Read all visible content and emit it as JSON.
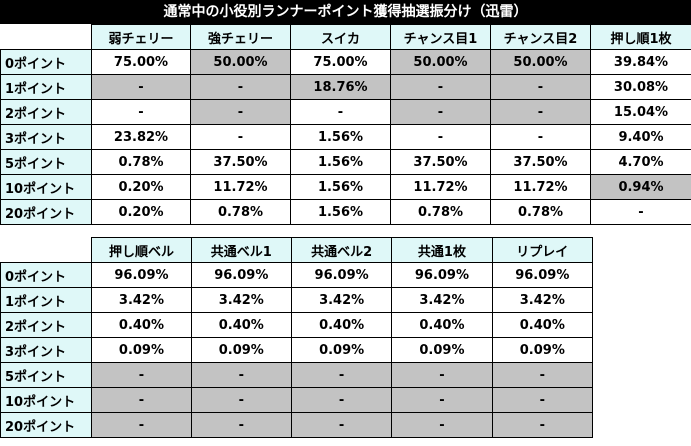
{
  "title": "通常中の小役別ランナーポイント獲得抽選振分け（迅雷）",
  "table1": {
    "headers": [
      "弱チェリー",
      "強チェリー",
      "スイカ",
      "チャンス目1",
      "チャンス目2",
      "押し順1枚"
    ],
    "rows": [
      {
        "label": "0ポイント",
        "cells": [
          "75.00%",
          "50.00%",
          "75.00%",
          "50.00%",
          "50.00%",
          "39.84%"
        ]
      },
      {
        "label": "1ポイント",
        "cells": [
          "-",
          "-",
          "18.76%",
          "-",
          "-",
          "30.08%"
        ]
      },
      {
        "label": "2ポイント",
        "cells": [
          "-",
          "-",
          "-",
          "-",
          "-",
          "15.04%"
        ]
      },
      {
        "label": "3ポイント",
        "cells": [
          "23.82%",
          "-",
          "1.56%",
          "-",
          "-",
          "9.40%"
        ]
      },
      {
        "label": "5ポイント",
        "cells": [
          "0.78%",
          "37.50%",
          "1.56%",
          "37.50%",
          "37.50%",
          "4.70%"
        ]
      },
      {
        "label": "10ポイント",
        "cells": [
          "0.20%",
          "11.72%",
          "1.56%",
          "11.72%",
          "11.72%",
          "0.94%"
        ]
      },
      {
        "label": "20ポイント",
        "cells": [
          "0.20%",
          "0.78%",
          "1.56%",
          "0.78%",
          "0.78%",
          "-"
        ]
      }
    ],
    "gray": [
      [
        0,
        1,
        0,
        1,
        1,
        0
      ],
      [
        1,
        1,
        1,
        1,
        1,
        0
      ],
      [
        0,
        1,
        0,
        1,
        1,
        0
      ],
      [
        0,
        0,
        0,
        0,
        0,
        0
      ],
      [
        0,
        0,
        0,
        0,
        0,
        0
      ],
      [
        0,
        0,
        0,
        0,
        0,
        1
      ],
      [
        0,
        0,
        0,
        0,
        0,
        0
      ]
    ]
  },
  "table2": {
    "headers": [
      "押し順ベル",
      "共通ベル1",
      "共通ベル2",
      "共通1枚",
      "リプレイ"
    ],
    "rows": [
      {
        "label": "0ポイント",
        "cells": [
          "96.09%",
          "96.09%",
          "96.09%",
          "96.09%",
          "96.09%"
        ]
      },
      {
        "label": "1ポイント",
        "cells": [
          "3.42%",
          "3.42%",
          "3.42%",
          "3.42%",
          "3.42%"
        ]
      },
      {
        "label": "2ポイント",
        "cells": [
          "0.40%",
          "0.40%",
          "0.40%",
          "0.40%",
          "0.40%"
        ]
      },
      {
        "label": "3ポイント",
        "cells": [
          "0.09%",
          "0.09%",
          "0.09%",
          "0.09%",
          "0.09%"
        ]
      },
      {
        "label": "5ポイント",
        "cells": [
          "-",
          "-",
          "-",
          "-",
          "-"
        ]
      },
      {
        "label": "10ポイント",
        "cells": [
          "-",
          "-",
          "-",
          "-",
          "-"
        ]
      },
      {
        "label": "20ポイント",
        "cells": [
          "-",
          "-",
          "-",
          "-",
          "-"
        ]
      }
    ],
    "gray": [
      [
        0,
        0,
        0,
        0,
        0
      ],
      [
        0,
        0,
        0,
        0,
        0
      ],
      [
        0,
        0,
        0,
        0,
        0
      ],
      [
        0,
        0,
        0,
        0,
        0
      ],
      [
        1,
        1,
        1,
        1,
        1
      ],
      [
        1,
        1,
        1,
        1,
        1
      ],
      [
        1,
        1,
        1,
        1,
        1
      ]
    ]
  },
  "colors": {
    "header_bg": "#dff8f8",
    "gray_cell": "#c3c3c3",
    "title_bg": "#000000",
    "title_fg": "#ffffff"
  }
}
